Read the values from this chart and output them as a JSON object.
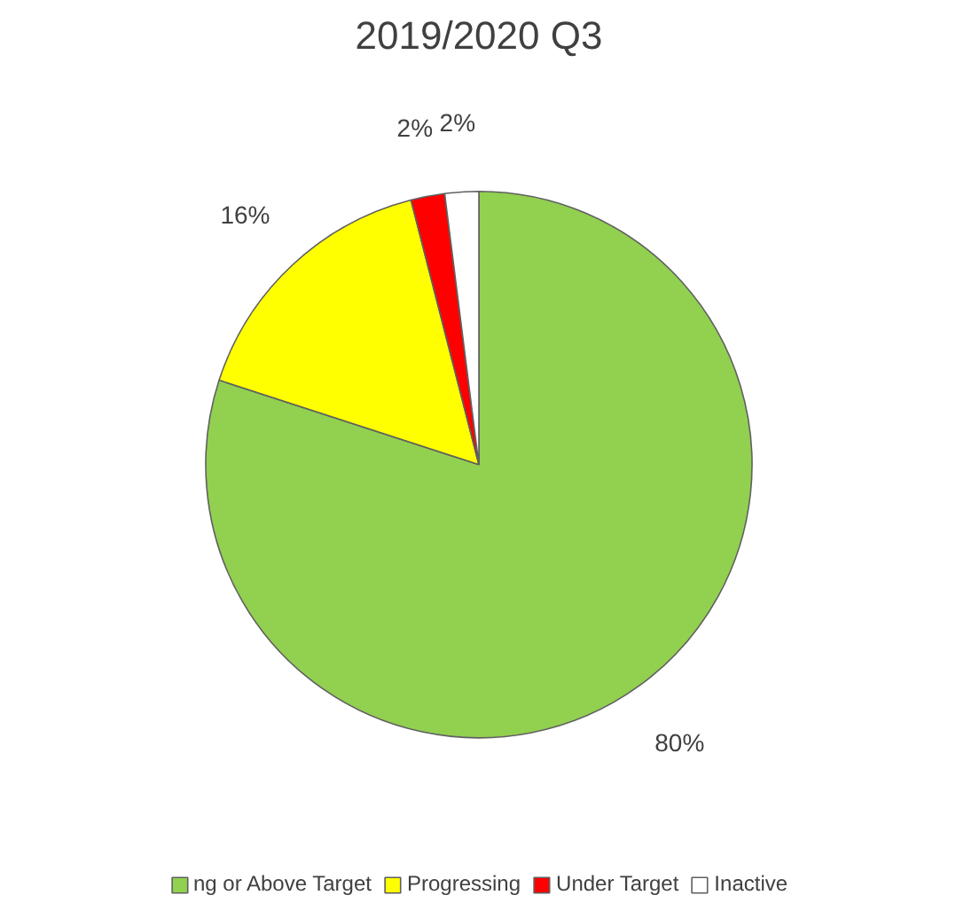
{
  "chart_data": {
    "type": "pie",
    "title": "2019/2020 Q3",
    "categories": [
      "ng or Above Target",
      "Progressing",
      "Under Target",
      "Inactive"
    ],
    "values": [
      80,
      16,
      2,
      2
    ],
    "colors": [
      "#92d050",
      "#ffff00",
      "#ff0000",
      "#ffffff"
    ],
    "value_labels": [
      "80%",
      "16%",
      "2%",
      "2%"
    ],
    "legend": "bottom"
  }
}
